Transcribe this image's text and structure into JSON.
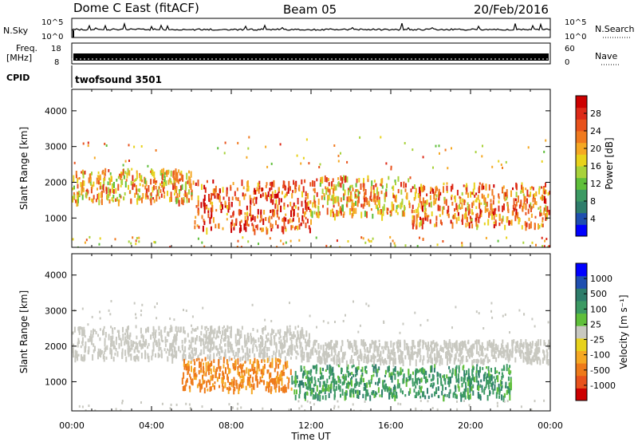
{
  "header": {
    "station": "Dome C East (fitACF)",
    "beam": "Beam 05",
    "date": "20/Feb/2016"
  },
  "top_panels": {
    "nsky_label": "N.Sky",
    "nsky_ticks": [
      "10^5",
      "10^0"
    ],
    "nsearch_label": "N.Search",
    "nsearch_ticks": [
      "10^5",
      "10^0"
    ],
    "freq_label": "Freq.",
    "freq_unit": "[MHz]",
    "freq_ticks": [
      "18",
      "8"
    ],
    "nave_label": "Nave",
    "nave_ticks": [
      "60",
      "0"
    ],
    "cpid_label": "CPID",
    "cpid_value": "twofsound 3501"
  },
  "colors": {
    "power_scale": [
      "#0000ff",
      "#1f4fb0",
      "#2e7d6b",
      "#3c9a63",
      "#5fbf3a",
      "#a8d23a",
      "#e8d21c",
      "#f5a823",
      "#f07a1f",
      "#e8521c",
      "#dd2a18",
      "#cc0000"
    ],
    "velocity_scale": [
      "#0000ff",
      "#1f4fb0",
      "#2e7d6b",
      "#3c9a63",
      "#5fbf3a",
      "#c8c8c0",
      "#e8d21c",
      "#f5a823",
      "#ee7a1a",
      "#e8521c",
      "#cc0000"
    ]
  },
  "chart_data": [
    {
      "type": "heatmap",
      "ylabel": "Slant Range [km]",
      "xlabel": "Time UT",
      "x_ticks": [
        "00:00",
        "04:00",
        "08:00",
        "12:00",
        "16:00",
        "20:00",
        "00:00"
      ],
      "y_ticks": [
        "1000",
        "2000",
        "3000",
        "4000"
      ],
      "xlim_hours": [
        0,
        24
      ],
      "ylim_km": [
        180,
        4600
      ],
      "colorbar_label": "Power [dB]",
      "colorbar_ticks": [
        "28",
        "24",
        "20",
        "16",
        "12",
        "8",
        "4"
      ],
      "colorbar_range_db": [
        0,
        32
      ],
      "bands": [
        {
          "t_start": 0,
          "t_end": 6,
          "range_start": 1500,
          "range_end": 2400,
          "value_db": 20
        },
        {
          "t_start": 6,
          "t_end": 12,
          "range_start": 700,
          "range_end": 2100,
          "value_db": 26
        },
        {
          "t_start": 12,
          "t_end": 17,
          "range_start": 1100,
          "range_end": 2200,
          "value_db": 21
        },
        {
          "t_start": 17,
          "t_end": 24,
          "range_start": 800,
          "range_end": 2000,
          "value_db": 24
        }
      ]
    },
    {
      "type": "heatmap",
      "ylabel": "Slant Range [km]",
      "xlabel": "Time UT",
      "x_ticks": [
        "00:00",
        "04:00",
        "08:00",
        "12:00",
        "16:00",
        "20:00",
        "00:00"
      ],
      "y_ticks": [
        "1000",
        "2000",
        "3000",
        "4000"
      ],
      "xlim_hours": [
        0,
        24
      ],
      "ylim_km": [
        180,
        4600
      ],
      "colorbar_label": "Velocity [m s⁻¹]",
      "colorbar_ticks": [
        "1000",
        "500",
        "100",
        "25",
        "-25",
        "-100",
        "-500",
        "-1000"
      ],
      "bands": [
        {
          "t_start": 0,
          "t_end": 12,
          "range_start": 1700,
          "range_end": 2600,
          "value_ms": 0
        },
        {
          "t_start": 5.5,
          "t_end": 11,
          "range_start": 800,
          "range_end": 1700,
          "value_ms": -300
        },
        {
          "t_start": 11,
          "t_end": 22,
          "range_start": 600,
          "range_end": 1500,
          "value_ms": 150
        },
        {
          "t_start": 12,
          "t_end": 24,
          "range_start": 1600,
          "range_end": 2200,
          "value_ms": 0
        }
      ]
    }
  ]
}
